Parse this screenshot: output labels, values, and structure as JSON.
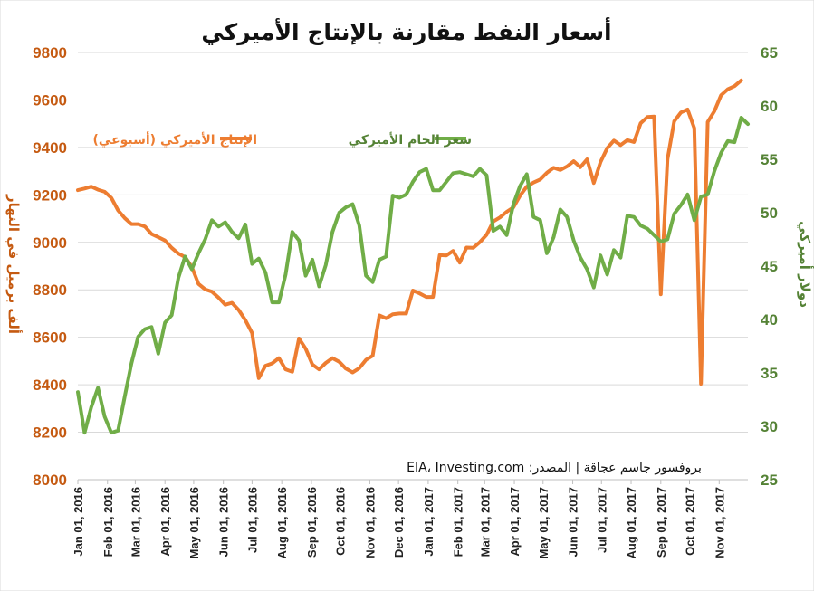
{
  "chart_data": {
    "type": "line",
    "title": "أسعار النفط مقارنة بالإنتاج الأميركي",
    "source": "بروفسور جاسم عجاقة | المصدر: EIA، Investing.com",
    "ylabel_left": "ألف برميل في النهار",
    "ylabel_right": "دولار أميركي",
    "ylim_left": [
      8000,
      9800
    ],
    "ylim_right": [
      25,
      65
    ],
    "yticks_left": [
      "8000",
      "8200",
      "8400",
      "8600",
      "8800",
      "9000",
      "9200",
      "9400",
      "9600",
      "9800"
    ],
    "yticks_right": [
      "25",
      "30",
      "35",
      "40",
      "45",
      "50",
      "55",
      "60",
      "65"
    ],
    "x_ticks": [
      "Jan 01, 2016",
      "Feb 01, 2016",
      "Mar 01, 2016",
      "Apr 01, 2016",
      "May 01, 2016",
      "Jun 01, 2016",
      "Jul 01, 2016",
      "Aug 01, 2016",
      "Sep 01, 2016",
      "Oct 01, 2016",
      "Nov 01, 2016",
      "Dec 01, 2016",
      "Jan 01, 2017",
      "Feb 01, 2017",
      "Mar 01, 2017",
      "Apr 01, 2017",
      "May 01, 2017",
      "Jun 01, 2017",
      "Jul 01, 2017",
      "Aug 01, 2017",
      "Sep 01, 2017",
      "Oct 01, 2017",
      "Nov 01, 2017"
    ],
    "grid": true,
    "colors": {
      "production": "#ED7D31",
      "price": "#70AD47",
      "left_axis": "#C55A11",
      "right_axis": "#548235"
    },
    "series": [
      {
        "name": "الإنتاج الأميركي (أسبوعي)",
        "axis": "left",
        "points": [
          {
            "x": "2016-01-01",
            "y": 9220
          },
          {
            "x": "2016-01-08",
            "y": 9227
          },
          {
            "x": "2016-01-15",
            "y": 9235
          },
          {
            "x": "2016-01-22",
            "y": 9222
          },
          {
            "x": "2016-01-29",
            "y": 9213
          },
          {
            "x": "2016-02-05",
            "y": 9187
          },
          {
            "x": "2016-02-12",
            "y": 9135
          },
          {
            "x": "2016-02-19",
            "y": 9102
          },
          {
            "x": "2016-02-26",
            "y": 9077
          },
          {
            "x": "2016-03-04",
            "y": 9077
          },
          {
            "x": "2016-03-11",
            "y": 9067
          },
          {
            "x": "2016-03-18",
            "y": 9035
          },
          {
            "x": "2016-03-25",
            "y": 9022
          },
          {
            "x": "2016-04-01",
            "y": 9008
          },
          {
            "x": "2016-04-08",
            "y": 8977
          },
          {
            "x": "2016-04-15",
            "y": 8953
          },
          {
            "x": "2016-04-22",
            "y": 8938
          },
          {
            "x": "2016-04-29",
            "y": 8897
          },
          {
            "x": "2016-05-06",
            "y": 8825
          },
          {
            "x": "2016-05-13",
            "y": 8802
          },
          {
            "x": "2016-05-20",
            "y": 8792
          },
          {
            "x": "2016-05-27",
            "y": 8767
          },
          {
            "x": "2016-06-03",
            "y": 8737
          },
          {
            "x": "2016-06-10",
            "y": 8745
          },
          {
            "x": "2016-06-17",
            "y": 8715
          },
          {
            "x": "2016-06-24",
            "y": 8672
          },
          {
            "x": "2016-07-01",
            "y": 8618
          },
          {
            "x": "2016-07-08",
            "y": 8428
          },
          {
            "x": "2016-07-15",
            "y": 8480
          },
          {
            "x": "2016-07-22",
            "y": 8490
          },
          {
            "x": "2016-07-29",
            "y": 8512
          },
          {
            "x": "2016-08-05",
            "y": 8465
          },
          {
            "x": "2016-08-12",
            "y": 8455
          },
          {
            "x": "2016-08-19",
            "y": 8595
          },
          {
            "x": "2016-08-26",
            "y": 8552
          },
          {
            "x": "2016-09-02",
            "y": 8485
          },
          {
            "x": "2016-09-09",
            "y": 8465
          },
          {
            "x": "2016-09-16",
            "y": 8492
          },
          {
            "x": "2016-09-23",
            "y": 8512
          },
          {
            "x": "2016-09-30",
            "y": 8497
          },
          {
            "x": "2016-10-07",
            "y": 8468
          },
          {
            "x": "2016-10-14",
            "y": 8452
          },
          {
            "x": "2016-10-21",
            "y": 8470
          },
          {
            "x": "2016-10-28",
            "y": 8505
          },
          {
            "x": "2016-11-04",
            "y": 8522
          },
          {
            "x": "2016-11-11",
            "y": 8692
          },
          {
            "x": "2016-11-18",
            "y": 8680
          },
          {
            "x": "2016-11-25",
            "y": 8697
          },
          {
            "x": "2016-12-02",
            "y": 8700
          },
          {
            "x": "2016-12-09",
            "y": 8700
          },
          {
            "x": "2016-12-16",
            "y": 8797
          },
          {
            "x": "2016-12-23",
            "y": 8785
          },
          {
            "x": "2016-12-30",
            "y": 8770
          },
          {
            "x": "2017-01-06",
            "y": 8770
          },
          {
            "x": "2017-01-13",
            "y": 8946
          },
          {
            "x": "2017-01-20",
            "y": 8945
          },
          {
            "x": "2017-01-27",
            "y": 8964
          },
          {
            "x": "2017-02-03",
            "y": 8915
          },
          {
            "x": "2017-02-10",
            "y": 8978
          },
          {
            "x": "2017-02-17",
            "y": 8977
          },
          {
            "x": "2017-02-24",
            "y": 9001
          },
          {
            "x": "2017-03-03",
            "y": 9032
          },
          {
            "x": "2017-03-10",
            "y": 9088
          },
          {
            "x": "2017-03-17",
            "y": 9105
          },
          {
            "x": "2017-03-24",
            "y": 9129
          },
          {
            "x": "2017-03-31",
            "y": 9147
          },
          {
            "x": "2017-04-07",
            "y": 9197
          },
          {
            "x": "2017-04-14",
            "y": 9235
          },
          {
            "x": "2017-04-21",
            "y": 9252
          },
          {
            "x": "2017-04-28",
            "y": 9265
          },
          {
            "x": "2017-05-05",
            "y": 9293
          },
          {
            "x": "2017-05-12",
            "y": 9314
          },
          {
            "x": "2017-05-19",
            "y": 9305
          },
          {
            "x": "2017-05-26",
            "y": 9320
          },
          {
            "x": "2017-06-02",
            "y": 9342
          },
          {
            "x": "2017-06-09",
            "y": 9317
          },
          {
            "x": "2017-06-16",
            "y": 9350
          },
          {
            "x": "2017-06-23",
            "y": 9250
          },
          {
            "x": "2017-06-30",
            "y": 9338
          },
          {
            "x": "2017-07-07",
            "y": 9397
          },
          {
            "x": "2017-07-14",
            "y": 9429
          },
          {
            "x": "2017-07-21",
            "y": 9410
          },
          {
            "x": "2017-07-28",
            "y": 9431
          },
          {
            "x": "2017-08-04",
            "y": 9423
          },
          {
            "x": "2017-08-11",
            "y": 9502
          },
          {
            "x": "2017-08-18",
            "y": 9528
          },
          {
            "x": "2017-08-25",
            "y": 9530
          },
          {
            "x": "2017-09-01",
            "y": 8781
          },
          {
            "x": "2017-09-08",
            "y": 9350
          },
          {
            "x": "2017-09-15",
            "y": 9510
          },
          {
            "x": "2017-09-22",
            "y": 9547
          },
          {
            "x": "2017-09-29",
            "y": 9560
          },
          {
            "x": "2017-10-06",
            "y": 9481
          },
          {
            "x": "2017-10-13",
            "y": 8404
          },
          {
            "x": "2017-10-20",
            "y": 9507
          },
          {
            "x": "2017-10-27",
            "y": 9553
          },
          {
            "x": "2017-11-03",
            "y": 9620
          },
          {
            "x": "2017-11-10",
            "y": 9645
          },
          {
            "x": "2017-11-17",
            "y": 9658
          },
          {
            "x": "2017-11-24",
            "y": 9682
          }
        ]
      },
      {
        "name": "سعر الخام الأميركي",
        "axis": "right",
        "points": [
          {
            "x": "2016-01-01",
            "y": 33.2
          },
          {
            "x": "2016-01-08",
            "y": 29.4
          },
          {
            "x": "2016-01-15",
            "y": 31.8
          },
          {
            "x": "2016-01-22",
            "y": 33.6
          },
          {
            "x": "2016-01-29",
            "y": 30.9
          },
          {
            "x": "2016-02-05",
            "y": 29.4
          },
          {
            "x": "2016-02-12",
            "y": 29.6
          },
          {
            "x": "2016-02-19",
            "y": 32.8
          },
          {
            "x": "2016-02-26",
            "y": 35.9
          },
          {
            "x": "2016-03-04",
            "y": 38.4
          },
          {
            "x": "2016-03-11",
            "y": 39.1
          },
          {
            "x": "2016-03-18",
            "y": 39.3
          },
          {
            "x": "2016-03-25",
            "y": 36.8
          },
          {
            "x": "2016-04-01",
            "y": 39.7
          },
          {
            "x": "2016-04-08",
            "y": 40.4
          },
          {
            "x": "2016-04-15",
            "y": 43.9
          },
          {
            "x": "2016-04-22",
            "y": 45.9
          },
          {
            "x": "2016-04-29",
            "y": 44.7
          },
          {
            "x": "2016-05-06",
            "y": 46.2
          },
          {
            "x": "2016-05-13",
            "y": 47.5
          },
          {
            "x": "2016-05-20",
            "y": 49.3
          },
          {
            "x": "2016-05-27",
            "y": 48.7
          },
          {
            "x": "2016-06-03",
            "y": 49.1
          },
          {
            "x": "2016-06-10",
            "y": 48.2
          },
          {
            "x": "2016-06-17",
            "y": 47.6
          },
          {
            "x": "2016-06-24",
            "y": 48.9
          },
          {
            "x": "2016-07-01",
            "y": 45.2
          },
          {
            "x": "2016-07-08",
            "y": 45.7
          },
          {
            "x": "2016-07-15",
            "y": 44.4
          },
          {
            "x": "2016-07-22",
            "y": 41.6
          },
          {
            "x": "2016-07-29",
            "y": 41.6
          },
          {
            "x": "2016-08-05",
            "y": 44.2
          },
          {
            "x": "2016-08-12",
            "y": 48.2
          },
          {
            "x": "2016-08-19",
            "y": 47.4
          },
          {
            "x": "2016-08-26",
            "y": 44.1
          },
          {
            "x": "2016-09-02",
            "y": 45.6
          },
          {
            "x": "2016-09-09",
            "y": 43.1
          },
          {
            "x": "2016-09-16",
            "y": 45.1
          },
          {
            "x": "2016-09-23",
            "y": 48.2
          },
          {
            "x": "2016-09-30",
            "y": 50.0
          },
          {
            "x": "2016-10-07",
            "y": 50.5
          },
          {
            "x": "2016-10-14",
            "y": 50.8
          },
          {
            "x": "2016-10-21",
            "y": 48.8
          },
          {
            "x": "2016-10-28",
            "y": 44.1
          },
          {
            "x": "2016-11-04",
            "y": 43.5
          },
          {
            "x": "2016-11-11",
            "y": 45.6
          },
          {
            "x": "2016-11-18",
            "y": 45.9
          },
          {
            "x": "2016-11-25",
            "y": 51.6
          },
          {
            "x": "2016-12-02",
            "y": 51.4
          },
          {
            "x": "2016-12-09",
            "y": 51.7
          },
          {
            "x": "2016-12-16",
            "y": 52.9
          },
          {
            "x": "2016-12-23",
            "y": 53.8
          },
          {
            "x": "2016-12-30",
            "y": 54.1
          },
          {
            "x": "2017-01-06",
            "y": 52.1
          },
          {
            "x": "2017-01-13",
            "y": 52.1
          },
          {
            "x": "2017-01-20",
            "y": 52.9
          },
          {
            "x": "2017-01-27",
            "y": 53.7
          },
          {
            "x": "2017-02-03",
            "y": 53.8
          },
          {
            "x": "2017-02-10",
            "y": 53.6
          },
          {
            "x": "2017-02-17",
            "y": 53.4
          },
          {
            "x": "2017-02-24",
            "y": 54.1
          },
          {
            "x": "2017-03-03",
            "y": 53.5
          },
          {
            "x": "2017-03-10",
            "y": 48.3
          },
          {
            "x": "2017-03-17",
            "y": 48.7
          },
          {
            "x": "2017-03-24",
            "y": 47.9
          },
          {
            "x": "2017-03-31",
            "y": 50.8
          },
          {
            "x": "2017-04-07",
            "y": 52.5
          },
          {
            "x": "2017-04-14",
            "y": 53.6
          },
          {
            "x": "2017-04-21",
            "y": 49.6
          },
          {
            "x": "2017-04-28",
            "y": 49.3
          },
          {
            "x": "2017-05-05",
            "y": 46.2
          },
          {
            "x": "2017-05-12",
            "y": 47.7
          },
          {
            "x": "2017-05-19",
            "y": 50.3
          },
          {
            "x": "2017-05-26",
            "y": 49.6
          },
          {
            "x": "2017-06-02",
            "y": 47.4
          },
          {
            "x": "2017-06-09",
            "y": 45.8
          },
          {
            "x": "2017-06-16",
            "y": 44.7
          },
          {
            "x": "2017-06-23",
            "y": 43.0
          },
          {
            "x": "2017-06-30",
            "y": 46.0
          },
          {
            "x": "2017-07-07",
            "y": 44.2
          },
          {
            "x": "2017-07-14",
            "y": 46.5
          },
          {
            "x": "2017-07-21",
            "y": 45.8
          },
          {
            "x": "2017-07-28",
            "y": 49.7
          },
          {
            "x": "2017-08-04",
            "y": 49.6
          },
          {
            "x": "2017-08-11",
            "y": 48.8
          },
          {
            "x": "2017-08-18",
            "y": 48.5
          },
          {
            "x": "2017-08-25",
            "y": 47.9
          },
          {
            "x": "2017-09-01",
            "y": 47.3
          },
          {
            "x": "2017-09-08",
            "y": 47.5
          },
          {
            "x": "2017-09-15",
            "y": 49.9
          },
          {
            "x": "2017-09-22",
            "y": 50.7
          },
          {
            "x": "2017-09-29",
            "y": 51.7
          },
          {
            "x": "2017-10-06",
            "y": 49.3
          },
          {
            "x": "2017-10-13",
            "y": 51.5
          },
          {
            "x": "2017-10-20",
            "y": 51.7
          },
          {
            "x": "2017-10-27",
            "y": 53.9
          },
          {
            "x": "2017-11-03",
            "y": 55.6
          },
          {
            "x": "2017-11-10",
            "y": 56.7
          },
          {
            "x": "2017-11-17",
            "y": 56.6
          },
          {
            "x": "2017-11-24",
            "y": 58.9
          },
          {
            "x": "2017-12-01",
            "y": 58.3
          }
        ]
      }
    ]
  }
}
